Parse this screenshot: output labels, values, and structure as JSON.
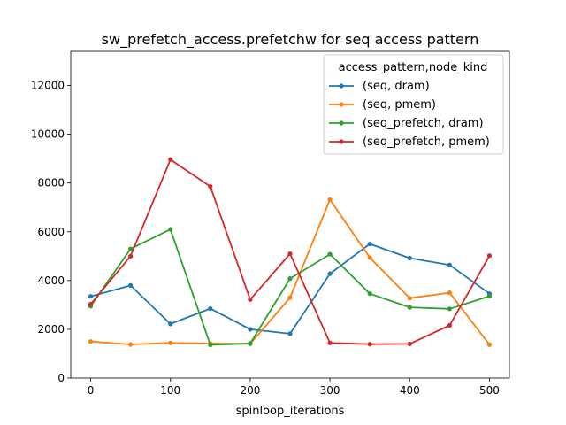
{
  "chart_data": {
    "type": "line",
    "title": "sw_prefetch_access.prefetchw for seq access pattern",
    "xlabel": "spinloop_iterations",
    "ylabel": "",
    "x": [
      0,
      50,
      100,
      150,
      200,
      250,
      300,
      350,
      400,
      450,
      500
    ],
    "xlim": [
      -25,
      525
    ],
    "ylim": [
      0,
      13400
    ],
    "xticks": [
      "0",
      "100",
      "200",
      "300",
      "400",
      "500"
    ],
    "yticks": [
      "0",
      "2000",
      "4000",
      "6000",
      "8000",
      "10000",
      "12000"
    ],
    "grid": false,
    "legend": {
      "title": "access_pattern,node_kind",
      "placement": "top-right"
    },
    "series": [
      {
        "name": "(seq, dram)",
        "color": "#1f77b4",
        "values": [
          3350,
          3800,
          2220,
          2850,
          2000,
          1820,
          4280,
          5500,
          4920,
          4640,
          3460
        ]
      },
      {
        "name": "(seq, pmem)",
        "color": "#ff7f0e",
        "values": [
          1500,
          1380,
          1440,
          1420,
          1400,
          3300,
          7320,
          4940,
          3280,
          3500,
          1370
        ]
      },
      {
        "name": "(seq_prefetch, dram)",
        "color": "#2ca02c",
        "values": [
          2950,
          5300,
          6100,
          1360,
          1420,
          4080,
          5080,
          3460,
          2900,
          2840,
          3360
        ]
      },
      {
        "name": "(seq_prefetch, pmem)",
        "color": "#d62728",
        "values": [
          3030,
          5000,
          8960,
          7860,
          3220,
          5100,
          1440,
          1390,
          1400,
          2160,
          5020
        ]
      }
    ]
  }
}
